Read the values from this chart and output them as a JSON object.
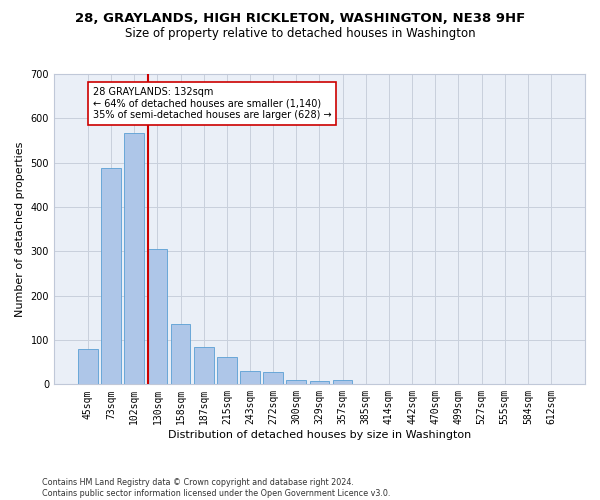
{
  "title": "28, GRAYLANDS, HIGH RICKLETON, WASHINGTON, NE38 9HF",
  "subtitle": "Size of property relative to detached houses in Washington",
  "xlabel": "Distribution of detached houses by size in Washington",
  "ylabel": "Number of detached properties",
  "footnote": "Contains HM Land Registry data © Crown copyright and database right 2024.\nContains public sector information licensed under the Open Government Licence v3.0.",
  "bar_labels": [
    "45sqm",
    "73sqm",
    "102sqm",
    "130sqm",
    "158sqm",
    "187sqm",
    "215sqm",
    "243sqm",
    "272sqm",
    "300sqm",
    "329sqm",
    "357sqm",
    "385sqm",
    "414sqm",
    "442sqm",
    "470sqm",
    "499sqm",
    "527sqm",
    "555sqm",
    "584sqm",
    "612sqm"
  ],
  "bar_values": [
    80,
    487,
    567,
    305,
    135,
    85,
    62,
    31,
    27,
    10,
    8,
    10,
    0,
    0,
    0,
    0,
    0,
    0,
    0,
    0,
    0
  ],
  "bar_color": "#aec6e8",
  "bar_edge_color": "#5a9fd4",
  "vline_x_index": 3,
  "vline_color": "#cc0000",
  "annotation_text": "28 GRAYLANDS: 132sqm\n← 64% of detached houses are smaller (1,140)\n35% of semi-detached houses are larger (628) →",
  "annotation_box_color": "#ffffff",
  "annotation_box_edge": "#cc0000",
  "ylim": [
    0,
    700
  ],
  "yticks": [
    0,
    100,
    200,
    300,
    400,
    500,
    600,
    700
  ],
  "plot_bg_color": "#eaeff7",
  "title_fontsize": 9.5,
  "subtitle_fontsize": 8.5,
  "label_fontsize": 8.0,
  "tick_fontsize": 7.0,
  "annotation_fontsize": 7.0,
  "footnote_fontsize": 5.8
}
